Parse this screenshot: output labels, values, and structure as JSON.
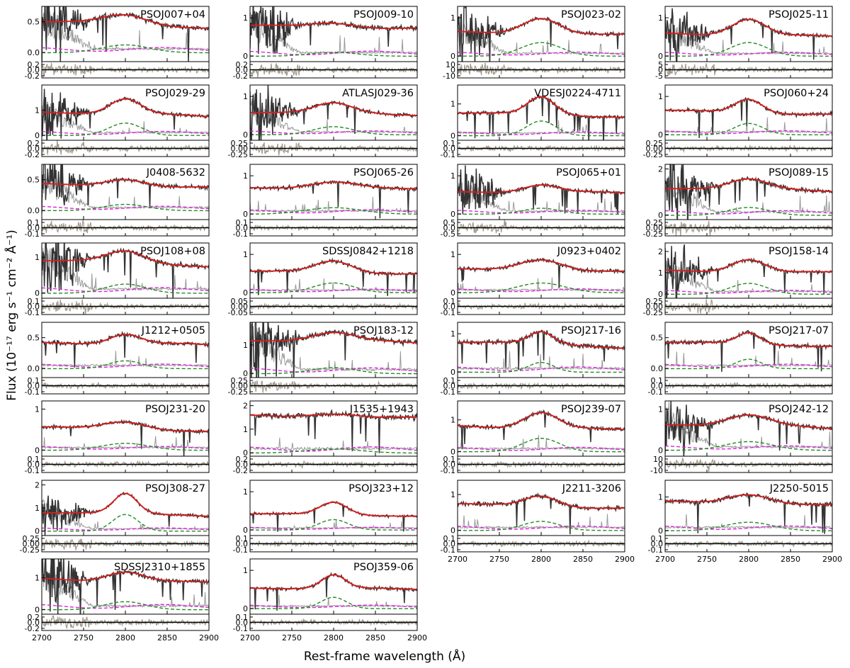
{
  "chart_data": {
    "type": "line",
    "xlabel": "Rest-frame wavelength (Å)",
    "ylabel": "Flux (10⁻¹⁷ erg s⁻¹ cm⁻² Å⁻¹)",
    "xlim": [
      2700,
      2900
    ],
    "xticks": [
      2700,
      2750,
      2800,
      2850,
      2900
    ],
    "legend": "none",
    "colors": {
      "observed": "#333333",
      "error": "#999999",
      "model": "#dd1c1c",
      "mgii_line": "#228b22",
      "feii": "#e020e0",
      "residual": "#a09a8c"
    },
    "panels": [
      {
        "name": "PSOJ007+04",
        "continuum": 0.5,
        "slope": -0.09,
        "line_amp": 0.15,
        "line_width": 26,
        "ylim": [
          -0.15,
          0.75
        ],
        "yticks": [
          "0.5",
          "0.0"
        ],
        "yvals": [
          0.5,
          0.0
        ],
        "rticks": [
          "0.2",
          "0.0",
          "-0.2"
        ],
        "noisy_blue": true
      },
      {
        "name": "PSOJ009-10",
        "continuum": 0.78,
        "slope": -0.05,
        "line_amp": 0.12,
        "line_width": 26,
        "ylim": [
          -0.15,
          1.3
        ],
        "yticks": [
          "1",
          "0"
        ],
        "yvals": [
          1,
          0
        ],
        "rticks": [
          "0.2",
          "0.0",
          "-0.2"
        ],
        "noisy_blue": true
      },
      {
        "name": "PSOJ023-02",
        "continuum": 0.62,
        "slope": -0.07,
        "line_amp": 0.42,
        "line_width": 22,
        "ylim": [
          -0.15,
          1.3
        ],
        "yticks": [
          "1",
          "0"
        ],
        "yvals": [
          1,
          0
        ],
        "rticks": [
          "10",
          "0",
          "-10"
        ],
        "noisy_blue": true
      },
      {
        "name": "PSOJ025-11",
        "continuum": 0.6,
        "slope": -0.1,
        "line_amp": 0.42,
        "line_width": 20,
        "ylim": [
          -0.15,
          1.3
        ],
        "yticks": [
          "1",
          "0"
        ],
        "yvals": [
          1,
          0
        ],
        "rticks": [
          "5",
          "0",
          "-5"
        ],
        "noisy_blue": true
      },
      {
        "name": "PSOJ029-29",
        "continuum": 0.95,
        "slope": -0.2,
        "line_amp": 0.58,
        "line_width": 18,
        "ylim": [
          -0.2,
          2.0
        ],
        "yticks": [
          "1",
          "0"
        ],
        "yvals": [
          1,
          0
        ],
        "rticks": [
          "0.2",
          "0.0",
          "-0.2"
        ],
        "noisy_blue": true
      },
      {
        "name": "ATLASJ029-36",
        "continuum": 0.6,
        "slope": -0.08,
        "line_amp": 0.25,
        "line_width": 22,
        "ylim": [
          -0.15,
          1.3
        ],
        "yticks": [
          "1",
          "0"
        ],
        "yvals": [
          1,
          0
        ],
        "rticks": [
          "0.25",
          "0.00",
          "-0.25"
        ],
        "noisy_blue": true
      },
      {
        "name": "VDESJ0224-4711",
        "continuum": 0.72,
        "slope": -0.12,
        "line_amp": 0.55,
        "line_width": 16,
        "ylim": [
          -0.15,
          1.6
        ],
        "yticks": [
          "1",
          "0"
        ],
        "yvals": [
          1,
          0
        ],
        "rticks": [
          "0.1",
          "0.0",
          "-0.1"
        ],
        "noisy_blue": false
      },
      {
        "name": "PSOJ060+24",
        "continuum": 0.62,
        "slope": -0.08,
        "line_amp": 0.35,
        "line_width": 16,
        "ylim": [
          -0.15,
          1.3
        ],
        "yticks": [
          "1",
          "0"
        ],
        "yvals": [
          1,
          0
        ],
        "rticks": [
          "0.25",
          "0.00",
          "-0.25"
        ],
        "noisy_blue": false
      },
      {
        "name": "J0408-5632",
        "continuum": 0.42,
        "slope": -0.05,
        "line_amp": 0.12,
        "line_width": 24,
        "ylim": [
          -0.15,
          0.75
        ],
        "yticks": [
          "0.5",
          "0.0"
        ],
        "yvals": [
          0.5,
          0.0
        ],
        "rticks": [
          "0.1",
          "0.0",
          "-0.1"
        ],
        "noisy_blue": true
      },
      {
        "name": "PSOJ065-26",
        "continuum": 0.68,
        "slope": -0.05,
        "line_amp": 0.2,
        "line_width": 30,
        "ylim": [
          -0.15,
          1.3
        ],
        "yticks": [
          "1",
          "0"
        ],
        "yvals": [
          1,
          0
        ],
        "rticks": [
          "0.1",
          "0.0",
          "-0.1"
        ],
        "noisy_blue": false
      },
      {
        "name": "PSOJ065+01",
        "continuum": 0.6,
        "slope": -0.05,
        "line_amp": 0.18,
        "line_width": 20,
        "ylim": [
          -0.15,
          1.3
        ],
        "yticks": [
          "1",
          "0"
        ],
        "yvals": [
          1,
          0
        ],
        "rticks": [
          "0.5",
          "0.0",
          "-0.5"
        ],
        "noisy_blue": true
      },
      {
        "name": "PSOJ089-15",
        "continuum": 1.2,
        "slope": -0.15,
        "line_amp": 0.4,
        "line_width": 22,
        "ylim": [
          -0.2,
          2.2
        ],
        "yticks": [
          "2",
          "0"
        ],
        "yvals": [
          2,
          0
        ],
        "rticks": [
          "0.25",
          "0.00",
          "-0.25"
        ],
        "noisy_blue": true
      },
      {
        "name": "PSOJ108+08",
        "continuum": 0.92,
        "slope": -0.15,
        "line_amp": 0.3,
        "line_width": 22,
        "ylim": [
          -0.15,
          1.4
        ],
        "yticks": [
          "1",
          "0"
        ],
        "yvals": [
          1,
          0
        ],
        "rticks": [
          "0.1",
          "0.0",
          "-0.1"
        ],
        "noisy_blue": true
      },
      {
        "name": "SDSSJ0842+1218",
        "continuum": 0.55,
        "slope": -0.05,
        "line_amp": 0.3,
        "line_width": 22,
        "ylim": [
          -0.15,
          1.3
        ],
        "yticks": [
          "1",
          "0"
        ],
        "yvals": [
          1,
          0
        ],
        "rticks": [
          "0.05",
          "0.00",
          "-0.05"
        ],
        "noisy_blue": false
      },
      {
        "name": "J0923+0402",
        "continuum": 0.6,
        "slope": -0.05,
        "line_amp": 0.3,
        "line_width": 26,
        "ylim": [
          -0.15,
          1.3
        ],
        "yticks": [
          "1",
          "0"
        ],
        "yvals": [
          1,
          0
        ],
        "rticks": [
          "0.1",
          "0.0",
          "-0.1"
        ],
        "noisy_blue": false
      },
      {
        "name": "PSOJ158-14",
        "continuum": 1.1,
        "slope": -0.1,
        "line_amp": 0.6,
        "line_width": 20,
        "ylim": [
          -0.2,
          2.4
        ],
        "yticks": [
          "2",
          "1",
          "0"
        ],
        "yvals": [
          2,
          1,
          0
        ],
        "rticks": [
          "0.25",
          "0.00",
          "-0.25"
        ],
        "noisy_blue": true
      },
      {
        "name": "J1212+0505",
        "continuum": 0.43,
        "slope": -0.05,
        "line_amp": 0.15,
        "line_width": 18,
        "ylim": [
          -0.15,
          0.75
        ],
        "yticks": [
          "0.5",
          "0.0"
        ],
        "yvals": [
          0.5,
          0.0
        ],
        "rticks": [
          "0.1",
          "0.0",
          "-0.1"
        ],
        "noisy_blue": false
      },
      {
        "name": "PSOJ183-12",
        "continuum": 1.2,
        "slope": -0.1,
        "line_amp": 0.25,
        "line_width": 24,
        "ylim": [
          -0.15,
          1.8
        ],
        "yticks": [
          "1",
          "0"
        ],
        "yvals": [
          1,
          0
        ],
        "rticks": [
          "0.25",
          "0.00",
          "-0.25"
        ],
        "noisy_blue": true
      },
      {
        "name": "PSOJ217-16",
        "continuum": 0.8,
        "slope": -0.15,
        "line_amp": 0.3,
        "line_width": 14,
        "ylim": [
          -0.15,
          1.3
        ],
        "yticks": [
          "1",
          "0"
        ],
        "yvals": [
          1,
          0
        ],
        "rticks": [
          "0.1",
          "0.0",
          "-0.1"
        ],
        "noisy_blue": false
      },
      {
        "name": "PSOJ217-07",
        "continuum": 0.42,
        "slope": -0.05,
        "line_amp": 0.18,
        "line_width": 14,
        "ylim": [
          -0.15,
          0.75
        ],
        "yticks": [
          "0.5",
          "0.0"
        ],
        "yvals": [
          0.5,
          0.0
        ],
        "rticks": [
          "0.1",
          "0.0",
          "-0.1"
        ],
        "noisy_blue": false
      },
      {
        "name": "PSOJ231-20",
        "continuum": 0.55,
        "slope": -0.1,
        "line_amp": 0.2,
        "line_width": 26,
        "ylim": [
          -0.15,
          1.2
        ],
        "yticks": [
          "1",
          "0"
        ],
        "yvals": [
          1,
          0
        ],
        "rticks": [
          "0.1",
          "0.0",
          "-0.1"
        ],
        "noisy_blue": false
      },
      {
        "name": "J1535+1943",
        "continuum": 1.55,
        "slope": -0.1,
        "line_amp": 0.2,
        "line_width": 30,
        "ylim": [
          -0.15,
          2.2
        ],
        "yticks": [
          "2",
          "1",
          "0"
        ],
        "yvals": [
          2,
          1,
          0
        ],
        "rticks": [
          "0.2",
          "0.0",
          "-0.2"
        ],
        "noisy_blue": false
      },
      {
        "name": "PSOJ239-07",
        "continuum": 0.82,
        "slope": -0.15,
        "line_amp": 0.5,
        "line_width": 20,
        "ylim": [
          -0.15,
          1.6
        ],
        "yticks": [
          "1",
          "0"
        ],
        "yvals": [
          1,
          0
        ],
        "rticks": [
          "0.1",
          "0.0",
          "-0.1"
        ],
        "noisy_blue": false
      },
      {
        "name": "PSOJ242-12",
        "continuum": 0.65,
        "slope": -0.12,
        "line_amp": 0.25,
        "line_width": 26,
        "ylim": [
          -0.15,
          1.2
        ],
        "yticks": [
          "1",
          "0"
        ],
        "yvals": [
          1,
          0
        ],
        "rticks": [
          "10",
          "0",
          "-10"
        ],
        "noisy_blue": true
      },
      {
        "name": "PSOJ308-27",
        "continuum": 0.82,
        "slope": -0.15,
        "line_amp": 0.85,
        "line_width": 14,
        "ylim": [
          -0.2,
          2.2
        ],
        "yticks": [
          "2",
          "1",
          "0"
        ],
        "yvals": [
          2,
          1,
          0
        ],
        "rticks": [
          "0.25",
          "0.00",
          "-0.25"
        ],
        "noisy_blue": true
      },
      {
        "name": "PSOJ323+12",
        "continuum": 0.42,
        "slope": -0.05,
        "line_amp": 0.32,
        "line_width": 16,
        "ylim": [
          -0.15,
          1.3
        ],
        "yticks": [
          "1",
          "0"
        ],
        "yvals": [
          1,
          0
        ],
        "rticks": [
          "0.1",
          "0.0",
          "-0.1"
        ],
        "noisy_blue": false
      },
      {
        "name": "J2211-3206",
        "continuum": 0.72,
        "slope": -0.1,
        "line_amp": 0.3,
        "line_width": 20,
        "ylim": [
          -0.15,
          1.4
        ],
        "yticks": [
          "1",
          "0"
        ],
        "yvals": [
          1,
          0
        ],
        "rticks": [
          "0.1",
          "0.0",
          "-0.1"
        ],
        "noisy_blue": false
      },
      {
        "name": "J2250-5015",
        "continuum": 0.85,
        "slope": -0.1,
        "line_amp": 0.3,
        "line_width": 26,
        "ylim": [
          -0.15,
          1.5
        ],
        "yticks": [
          "1",
          "0"
        ],
        "yvals": [
          1,
          0
        ],
        "rticks": [
          "0.1",
          "0.0",
          "-0.1"
        ],
        "noisy_blue": false
      },
      {
        "name": "SDSSJ2310+1855",
        "continuum": 0.98,
        "slope": -0.15,
        "line_amp": 0.3,
        "line_width": 22,
        "ylim": [
          -0.15,
          1.6
        ],
        "yticks": [
          "1",
          "0"
        ],
        "yvals": [
          1,
          0
        ],
        "rticks": [
          "0.2",
          "0.0",
          "-0.2"
        ],
        "noisy_blue": true
      },
      {
        "name": "PSOJ359-06",
        "continuum": 0.55,
        "slope": -0.05,
        "line_amp": 0.35,
        "line_width": 14,
        "ylim": [
          -0.15,
          1.3
        ],
        "yticks": [
          "1",
          "0"
        ],
        "yvals": [
          1,
          0
        ],
        "rticks": [
          "0.1",
          "0.0",
          "-0.1"
        ],
        "noisy_blue": false
      }
    ]
  }
}
